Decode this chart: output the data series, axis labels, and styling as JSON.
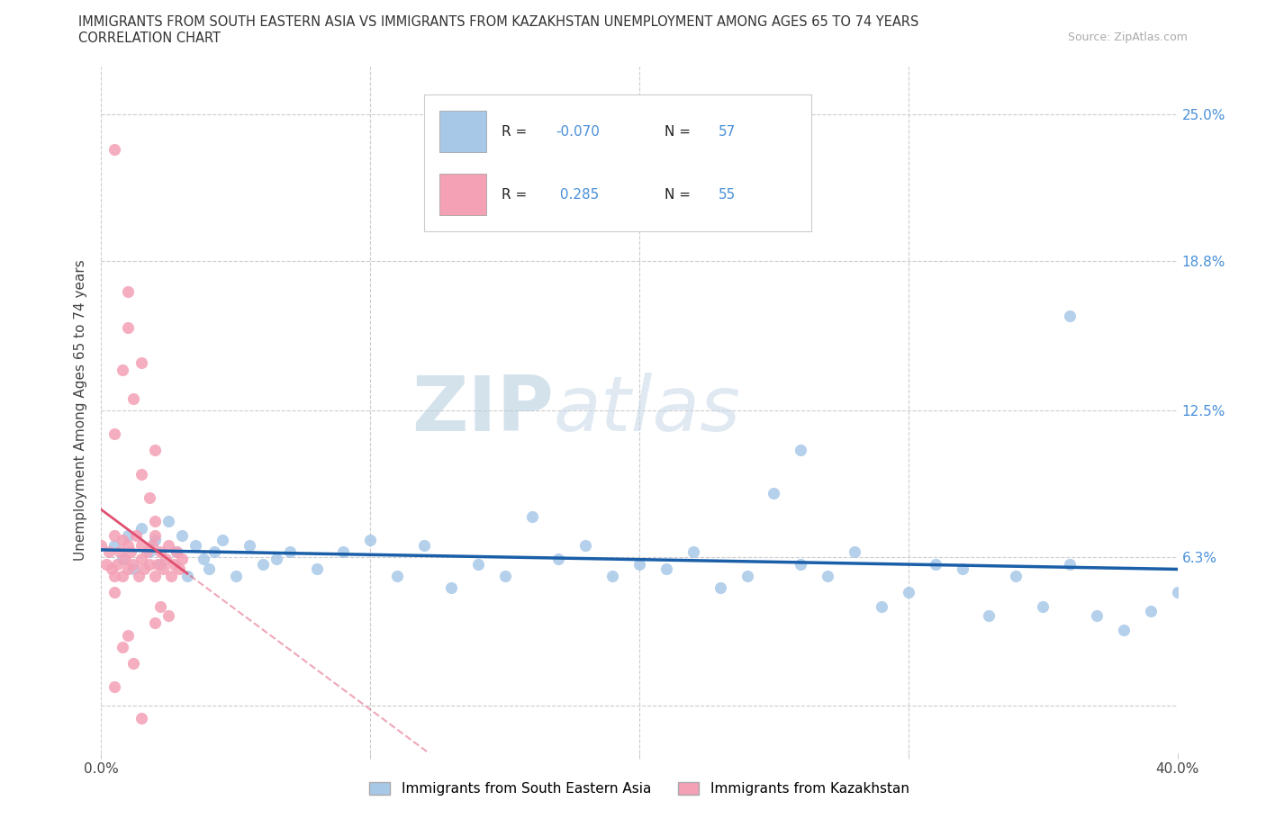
{
  "title_line1": "IMMIGRANTS FROM SOUTH EASTERN ASIA VS IMMIGRANTS FROM KAZAKHSTAN UNEMPLOYMENT AMONG AGES 65 TO 74 YEARS",
  "title_line2": "CORRELATION CHART",
  "source_text": "Source: ZipAtlas.com",
  "ylabel": "Unemployment Among Ages 65 to 74 years",
  "xlim": [
    0.0,
    0.4
  ],
  "ylim": [
    -0.02,
    0.27
  ],
  "series1_name": "Immigrants from South Eastern Asia",
  "series1_color": "#a8c8e8",
  "series1_line_color": "#1a5fa8",
  "series1_R": -0.07,
  "series1_N": 57,
  "series2_name": "Immigrants from Kazakhstan",
  "series2_color": "#f4a0b5",
  "series2_line_color": "#e05070",
  "series2_R": 0.285,
  "series2_N": 55,
  "watermark_zip": "ZIP",
  "watermark_atlas": "atlas",
  "bg_color": "#ffffff",
  "grid_color": "#cccccc",
  "right_ytick_color": "#4a90d9",
  "ytick_positions": [
    0.0,
    0.063,
    0.125,
    0.188,
    0.25
  ],
  "ytick_labels_right": [
    "",
    "6.3%",
    "12.5%",
    "18.8%",
    "25.0%"
  ],
  "xtick_positions": [
    0.0,
    0.1,
    0.2,
    0.3,
    0.4
  ],
  "xtick_labels": [
    "0.0%",
    "",
    "",
    "",
    "40.0%"
  ],
  "series1_x": [
    0.005,
    0.008,
    0.01,
    0.012,
    0.015,
    0.018,
    0.02,
    0.022,
    0.025,
    0.028,
    0.03,
    0.032,
    0.035,
    0.038,
    0.04,
    0.042,
    0.045,
    0.05,
    0.055,
    0.06,
    0.065,
    0.07,
    0.08,
    0.09,
    0.1,
    0.11,
    0.12,
    0.13,
    0.14,
    0.15,
    0.16,
    0.17,
    0.18,
    0.19,
    0.2,
    0.21,
    0.22,
    0.23,
    0.24,
    0.25,
    0.26,
    0.27,
    0.28,
    0.29,
    0.3,
    0.31,
    0.32,
    0.33,
    0.34,
    0.35,
    0.36,
    0.37,
    0.38,
    0.39,
    0.4,
    0.36,
    0.26
  ],
  "series1_y": [
    0.068,
    0.062,
    0.072,
    0.058,
    0.075,
    0.065,
    0.07,
    0.06,
    0.078,
    0.065,
    0.072,
    0.055,
    0.068,
    0.062,
    0.058,
    0.065,
    0.07,
    0.055,
    0.068,
    0.06,
    0.062,
    0.065,
    0.058,
    0.065,
    0.07,
    0.055,
    0.068,
    0.05,
    0.06,
    0.055,
    0.08,
    0.062,
    0.068,
    0.055,
    0.06,
    0.058,
    0.065,
    0.05,
    0.055,
    0.09,
    0.06,
    0.055,
    0.065,
    0.042,
    0.048,
    0.06,
    0.058,
    0.038,
    0.055,
    0.042,
    0.06,
    0.038,
    0.032,
    0.04,
    0.048,
    0.165,
    0.108
  ],
  "series2_x": [
    0.0,
    0.002,
    0.003,
    0.004,
    0.005,
    0.005,
    0.006,
    0.007,
    0.008,
    0.008,
    0.009,
    0.01,
    0.01,
    0.011,
    0.012,
    0.013,
    0.014,
    0.015,
    0.015,
    0.016,
    0.017,
    0.018,
    0.019,
    0.02,
    0.02,
    0.021,
    0.022,
    0.023,
    0.024,
    0.025,
    0.026,
    0.027,
    0.028,
    0.029,
    0.03,
    0.005,
    0.008,
    0.01,
    0.012,
    0.015,
    0.018,
    0.02,
    0.022,
    0.025,
    0.005,
    0.01,
    0.015,
    0.02,
    0.005,
    0.01,
    0.008,
    0.012,
    0.005,
    0.015,
    0.02
  ],
  "series2_y": [
    0.068,
    0.06,
    0.065,
    0.058,
    0.072,
    0.055,
    0.06,
    0.065,
    0.07,
    0.055,
    0.062,
    0.068,
    0.058,
    0.065,
    0.06,
    0.072,
    0.055,
    0.068,
    0.062,
    0.058,
    0.065,
    0.06,
    0.068,
    0.055,
    0.072,
    0.06,
    0.065,
    0.058,
    0.062,
    0.068,
    0.055,
    0.06,
    0.065,
    0.058,
    0.062,
    0.115,
    0.142,
    0.16,
    0.13,
    0.098,
    0.088,
    0.078,
    0.042,
    0.038,
    0.235,
    0.175,
    0.145,
    0.108,
    0.048,
    0.03,
    0.025,
    0.018,
    0.008,
    -0.005,
    0.035
  ]
}
